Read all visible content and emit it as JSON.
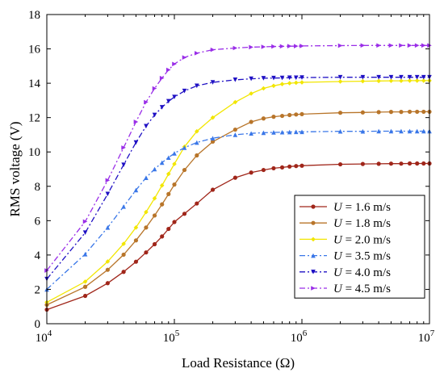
{
  "chart_data": {
    "type": "line",
    "x_scale": "log",
    "xlim": [
      10000,
      10000000
    ],
    "ylim": [
      0,
      18
    ],
    "xlabel": "Load Resistance (Ω)",
    "ylabel": "RMS voltage (V)",
    "x_ticks": [
      {
        "value": 10000,
        "base": "10",
        "exp": "4"
      },
      {
        "value": 100000,
        "base": "10",
        "exp": "5"
      },
      {
        "value": 1000000,
        "base": "10",
        "exp": "6"
      },
      {
        "value": 10000000,
        "base": "10",
        "exp": "7"
      }
    ],
    "y_ticks": [
      "0",
      "2",
      "4",
      "6",
      "8",
      "10",
      "12",
      "14",
      "16",
      "18"
    ],
    "legend": {
      "position": "bottom-right"
    },
    "x": [
      10000,
      20000,
      30000,
      40000,
      50000,
      60000,
      70000,
      80000,
      90000,
      100000,
      120000,
      150000,
      200000,
      300000,
      400000,
      500000,
      600000,
      700000,
      800000,
      900000,
      1000000,
      2000000,
      3000000,
      4000000,
      5000000,
      6000000,
      7000000,
      8000000,
      9000000,
      10000000
    ],
    "series": [
      {
        "name": "U = 1.6 m/s",
        "u_var": "U",
        "u_rest": " = 1.6 m/s",
        "color": "#a0261a",
        "marker": "circle",
        "dash": "none",
        "values": [
          0.82,
          1.62,
          2.36,
          3.02,
          3.61,
          4.15,
          4.63,
          5.08,
          5.52,
          5.92,
          6.4,
          7.0,
          7.8,
          8.5,
          8.8,
          8.95,
          9.05,
          9.1,
          9.15,
          9.18,
          9.2,
          9.28,
          9.3,
          9.31,
          9.32,
          9.32,
          9.33,
          9.33,
          9.33,
          9.33
        ]
      },
      {
        "name": "U = 1.8 m/s",
        "u_var": "U",
        "u_rest": " = 1.8 m/s",
        "color": "#b8752a",
        "marker": "circle",
        "dash": "none",
        "values": [
          1.1,
          2.15,
          3.14,
          4.02,
          4.85,
          5.6,
          6.3,
          6.95,
          7.55,
          8.1,
          8.95,
          9.8,
          10.6,
          11.3,
          11.75,
          11.95,
          12.05,
          12.1,
          12.15,
          12.18,
          12.2,
          12.28,
          12.3,
          12.32,
          12.33,
          12.33,
          12.34,
          12.34,
          12.34,
          12.34
        ]
      },
      {
        "name": "U = 2.0 m/s",
        "u_var": "U",
        "u_rest": " = 2.0 m/s",
        "color": "#f2e600",
        "marker": "diamond",
        "dash": "none",
        "values": [
          1.25,
          2.45,
          3.62,
          4.65,
          5.6,
          6.5,
          7.3,
          8.05,
          8.72,
          9.3,
          10.3,
          11.2,
          12.0,
          12.9,
          13.4,
          13.7,
          13.85,
          13.95,
          14.0,
          14.03,
          14.05,
          14.1,
          14.12,
          14.13,
          14.14,
          14.14,
          14.15,
          14.15,
          14.15,
          14.15
        ]
      },
      {
        "name": "U = 3.5 m/s",
        "u_var": "U",
        "u_rest": " = 3.5 m/s",
        "color": "#3a77e8",
        "marker": "triangle-up",
        "dash": "dashdot",
        "values": [
          2.0,
          4.05,
          5.6,
          6.82,
          7.78,
          8.5,
          9.0,
          9.38,
          9.67,
          9.92,
          10.25,
          10.55,
          10.8,
          11.0,
          11.08,
          11.12,
          11.14,
          11.15,
          11.16,
          11.17,
          11.17,
          11.2,
          11.2,
          11.21,
          11.21,
          11.21,
          11.21,
          11.21,
          11.21,
          11.21
        ]
      },
      {
        "name": "U = 4.0 m/s",
        "u_var": "U",
        "u_rest": " = 4.0 m/s",
        "color": "#1f10c4",
        "marker": "triangle-down",
        "dash": "dashdot",
        "values": [
          2.6,
          5.3,
          7.55,
          9.25,
          10.55,
          11.5,
          12.15,
          12.6,
          12.95,
          13.2,
          13.55,
          13.85,
          14.05,
          14.2,
          14.26,
          14.29,
          14.3,
          14.31,
          14.32,
          14.32,
          14.33,
          14.35,
          14.35,
          14.35,
          14.35,
          14.35,
          14.35,
          14.35,
          14.35,
          14.35
        ]
      },
      {
        "name": "U = 4.5 m/s",
        "u_var": "U",
        "u_rest": " = 4.5 m/s",
        "color": "#9a2ee8",
        "marker": "triangle-right",
        "dash": "dashdot",
        "values": [
          3.1,
          5.95,
          8.35,
          10.25,
          11.75,
          12.9,
          13.7,
          14.3,
          14.78,
          15.12,
          15.5,
          15.75,
          15.95,
          16.05,
          16.1,
          16.12,
          16.14,
          16.15,
          16.16,
          16.16,
          16.17,
          16.19,
          16.2,
          16.2,
          16.2,
          16.2,
          16.2,
          16.2,
          16.2,
          16.2
        ]
      }
    ]
  }
}
